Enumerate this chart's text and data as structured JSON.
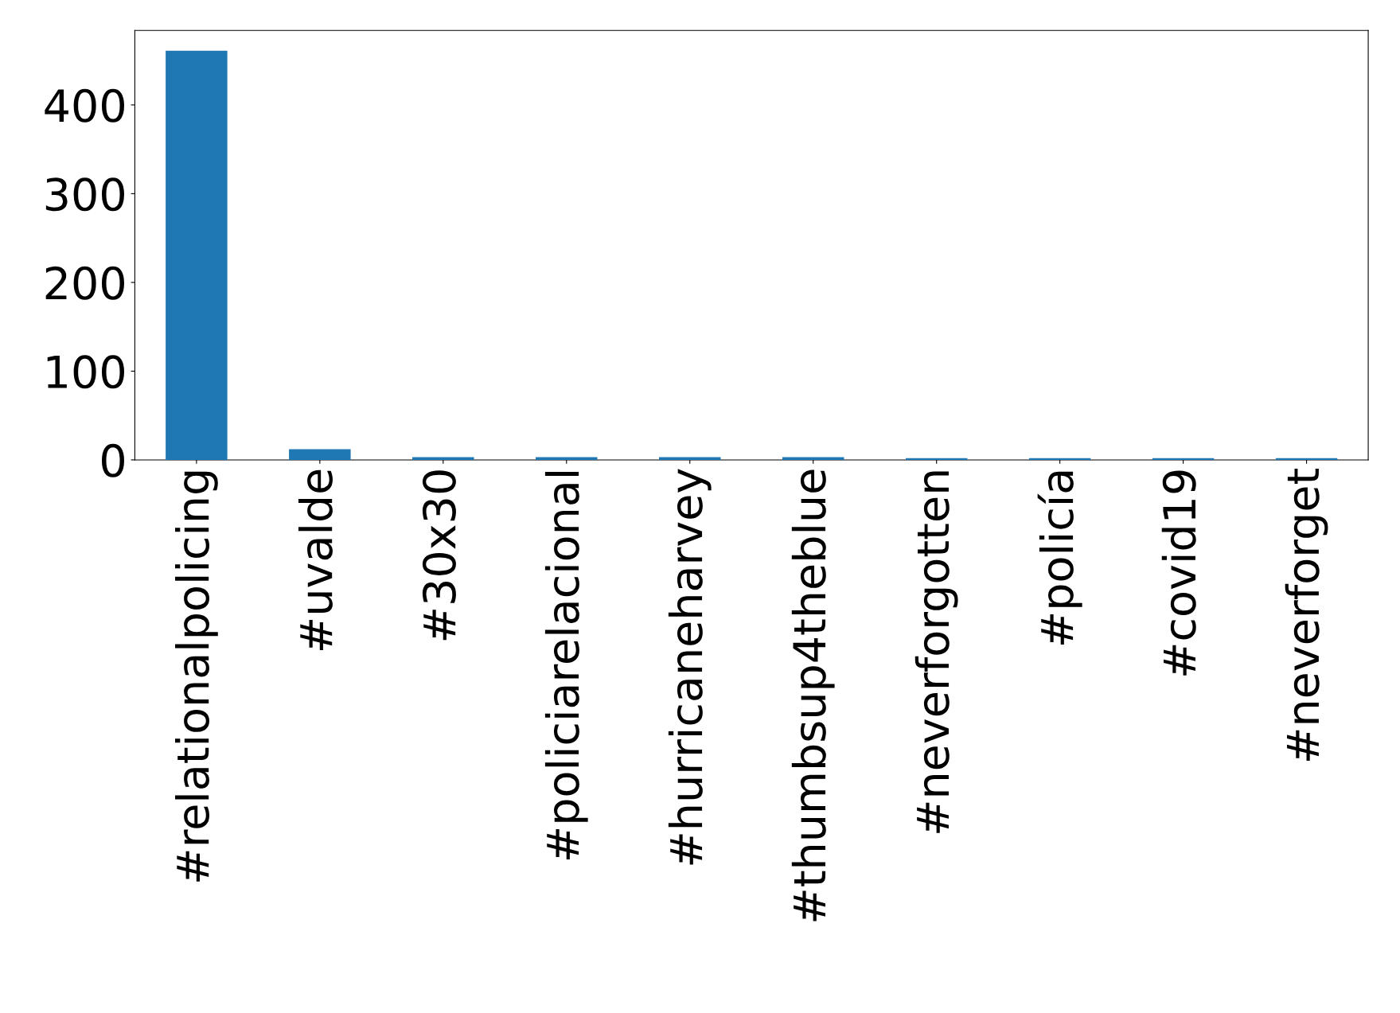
{
  "chart_data": {
    "type": "bar",
    "categories": [
      "#relationalpolicing",
      "#uvalde",
      "#30x30",
      "#policiarelacional",
      "#hurricaneharvey",
      "#thumbsup4theblue",
      "#neverforgotten",
      "#policía",
      "#covid19",
      "#neverforget"
    ],
    "values": [
      461,
      12,
      3,
      3,
      3,
      3,
      2,
      2,
      2,
      2
    ],
    "color": "#1f77b4",
    "ylim": [
      0,
      484
    ],
    "yticks": [
      0,
      100,
      200,
      300,
      400
    ],
    "grid": false,
    "legend": false
  }
}
